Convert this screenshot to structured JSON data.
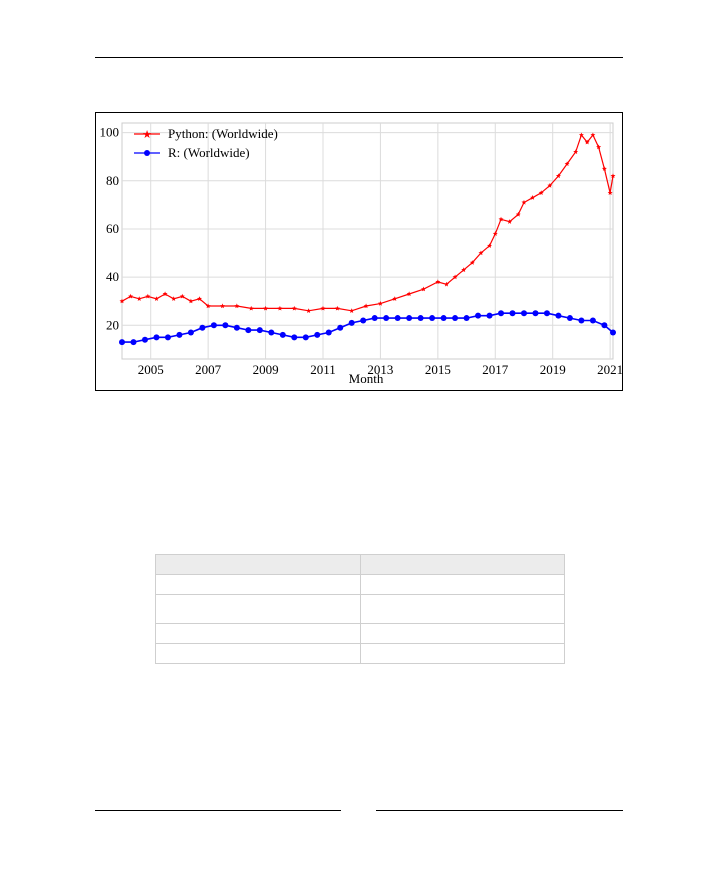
{
  "colors": {
    "python": "#ff0000",
    "r": "#0000ff",
    "grid": "#dcdcdc"
  },
  "chart_data": {
    "type": "line",
    "xlabel": "Month",
    "ylabel": "",
    "xlim": [
      2004.0,
      2021.1
    ],
    "ylim": [
      6,
      104
    ],
    "grid": true,
    "legend_position": "top-left",
    "x_ticks": [
      "2005",
      "2007",
      "2009",
      "2011",
      "2013",
      "2015",
      "2017",
      "2019",
      "2021"
    ],
    "y_ticks": [
      "20",
      "40",
      "60",
      "80",
      "100"
    ],
    "series": [
      {
        "name": "Python: (Worldwide)",
        "color": "#ff0000",
        "marker": "star",
        "points": [
          [
            2004.0,
            30
          ],
          [
            2004.3,
            32
          ],
          [
            2004.6,
            31
          ],
          [
            2004.9,
            32
          ],
          [
            2005.2,
            31
          ],
          [
            2005.5,
            33
          ],
          [
            2005.8,
            31
          ],
          [
            2006.1,
            32
          ],
          [
            2006.4,
            30
          ],
          [
            2006.7,
            31
          ],
          [
            2007.0,
            28
          ],
          [
            2007.5,
            28
          ],
          [
            2008.0,
            28
          ],
          [
            2008.5,
            27
          ],
          [
            2009.0,
            27
          ],
          [
            2009.5,
            27
          ],
          [
            2010.0,
            27
          ],
          [
            2010.5,
            26
          ],
          [
            2011.0,
            27
          ],
          [
            2011.5,
            27
          ],
          [
            2012.0,
            26
          ],
          [
            2012.5,
            28
          ],
          [
            2013.0,
            29
          ],
          [
            2013.5,
            31
          ],
          [
            2014.0,
            33
          ],
          [
            2014.5,
            35
          ],
          [
            2015.0,
            38
          ],
          [
            2015.3,
            37
          ],
          [
            2015.6,
            40
          ],
          [
            2015.9,
            43
          ],
          [
            2016.2,
            46
          ],
          [
            2016.5,
            50
          ],
          [
            2016.8,
            53
          ],
          [
            2017.0,
            58
          ],
          [
            2017.2,
            64
          ],
          [
            2017.5,
            63
          ],
          [
            2017.8,
            66
          ],
          [
            2018.0,
            71
          ],
          [
            2018.3,
            73
          ],
          [
            2018.6,
            75
          ],
          [
            2018.9,
            78
          ],
          [
            2019.2,
            82
          ],
          [
            2019.5,
            87
          ],
          [
            2019.8,
            92
          ],
          [
            2020.0,
            99
          ],
          [
            2020.2,
            96
          ],
          [
            2020.4,
            99
          ],
          [
            2020.6,
            94
          ],
          [
            2020.8,
            85
          ],
          [
            2021.0,
            75
          ],
          [
            2021.1,
            82
          ]
        ]
      },
      {
        "name": "R: (Worldwide)",
        "color": "#0000ff",
        "marker": "circle",
        "points": [
          [
            2004.0,
            13
          ],
          [
            2004.4,
            13
          ],
          [
            2004.8,
            14
          ],
          [
            2005.2,
            15
          ],
          [
            2005.6,
            15
          ],
          [
            2006.0,
            16
          ],
          [
            2006.4,
            17
          ],
          [
            2006.8,
            19
          ],
          [
            2007.2,
            20
          ],
          [
            2007.6,
            20
          ],
          [
            2008.0,
            19
          ],
          [
            2008.4,
            18
          ],
          [
            2008.8,
            18
          ],
          [
            2009.2,
            17
          ],
          [
            2009.6,
            16
          ],
          [
            2010.0,
            15
          ],
          [
            2010.4,
            15
          ],
          [
            2010.8,
            16
          ],
          [
            2011.2,
            17
          ],
          [
            2011.6,
            19
          ],
          [
            2012.0,
            21
          ],
          [
            2012.4,
            22
          ],
          [
            2012.8,
            23
          ],
          [
            2013.2,
            23
          ],
          [
            2013.6,
            23
          ],
          [
            2014.0,
            23
          ],
          [
            2014.4,
            23
          ],
          [
            2014.8,
            23
          ],
          [
            2015.2,
            23
          ],
          [
            2015.6,
            23
          ],
          [
            2016.0,
            23
          ],
          [
            2016.4,
            24
          ],
          [
            2016.8,
            24
          ],
          [
            2017.2,
            25
          ],
          [
            2017.6,
            25
          ],
          [
            2018.0,
            25
          ],
          [
            2018.4,
            25
          ],
          [
            2018.8,
            25
          ],
          [
            2019.2,
            24
          ],
          [
            2019.6,
            23
          ],
          [
            2020.0,
            22
          ],
          [
            2020.4,
            22
          ],
          [
            2020.8,
            20
          ],
          [
            2021.1,
            17
          ]
        ]
      }
    ]
  }
}
